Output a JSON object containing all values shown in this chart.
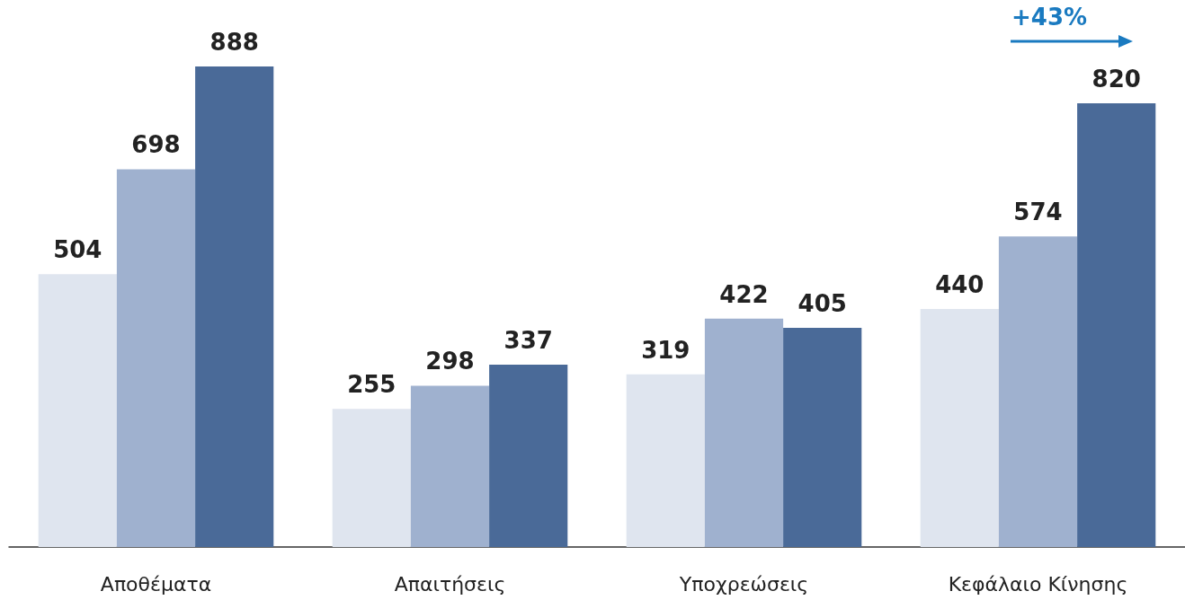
{
  "chart_data": {
    "type": "bar",
    "categories": [
      "Αποθέματα",
      "Απαιτήσεις",
      "Υποχρεώσεις",
      "Κεφάλαιο Κίνησης"
    ],
    "series": [
      {
        "color": "#dfe5ef",
        "values": [
          504,
          255,
          319,
          440
        ]
      },
      {
        "color": "#9fb1cf",
        "values": [
          698,
          298,
          422,
          574
        ]
      },
      {
        "color": "#4a6a98",
        "values": [
          888,
          337,
          405,
          820
        ]
      }
    ],
    "data_labels": true,
    "annotations": [
      "+43%"
    ]
  }
}
